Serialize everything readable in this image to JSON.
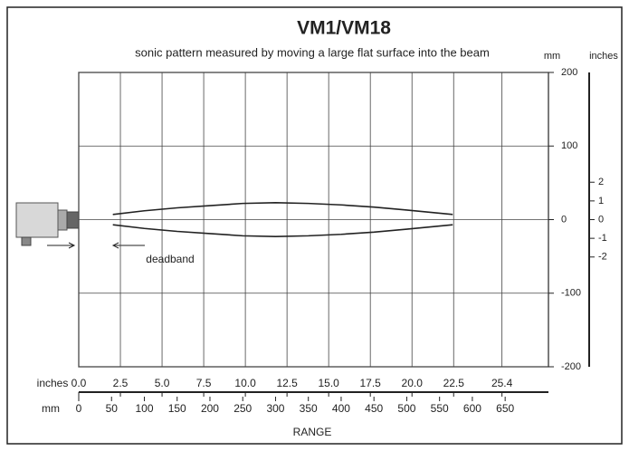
{
  "chart_data": {
    "type": "line",
    "title": "VM1/VM18",
    "subtitle": "sonic pattern measured by moving a large flat surface into the beam",
    "y_unit_label": "mm",
    "y2_unit_label": "inches",
    "x2_unit_label": "inches",
    "x_unit_label": "mm",
    "x_label": "RANGE",
    "annotation": "deadband",
    "xlim": [
      0,
      716
    ],
    "xticks": [
      0,
      50,
      100,
      150,
      200,
      250,
      300,
      350,
      400,
      450,
      500,
      550,
      600,
      650
    ],
    "x2lim": [
      0,
      28.19
    ],
    "x2ticks": [
      {
        "value": 0,
        "label": "0.0"
      },
      2.5,
      {
        "value": 5,
        "label": "5.0"
      },
      7.5,
      {
        "value": 10,
        "label": "10.0"
      },
      12.5,
      {
        "value": 15,
        "label": "15.0"
      },
      17.5,
      {
        "value": 20,
        "label": "20.0"
      },
      22.5,
      25.4
    ],
    "ylim": [
      -200,
      200
    ],
    "yticks": [
      200,
      100,
      0,
      -100,
      -200
    ],
    "y2lim": [
      -7.874,
      7.874
    ],
    "y2ticks": [
      2,
      1,
      0,
      -1,
      -2
    ],
    "grid": true,
    "x": [
      52,
      100,
      150,
      200,
      250,
      300,
      350,
      400,
      450,
      500,
      570
    ],
    "series": [
      {
        "color": "#222222",
        "values": [
          7,
          12,
          16,
          19,
          22,
          23,
          22,
          20,
          17,
          13,
          7
        ]
      },
      {
        "color": "#222222",
        "values": [
          -7,
          -12,
          -16,
          -19,
          -22,
          -23,
          -22,
          -20,
          -17,
          -13,
          -7
        ]
      }
    ]
  }
}
